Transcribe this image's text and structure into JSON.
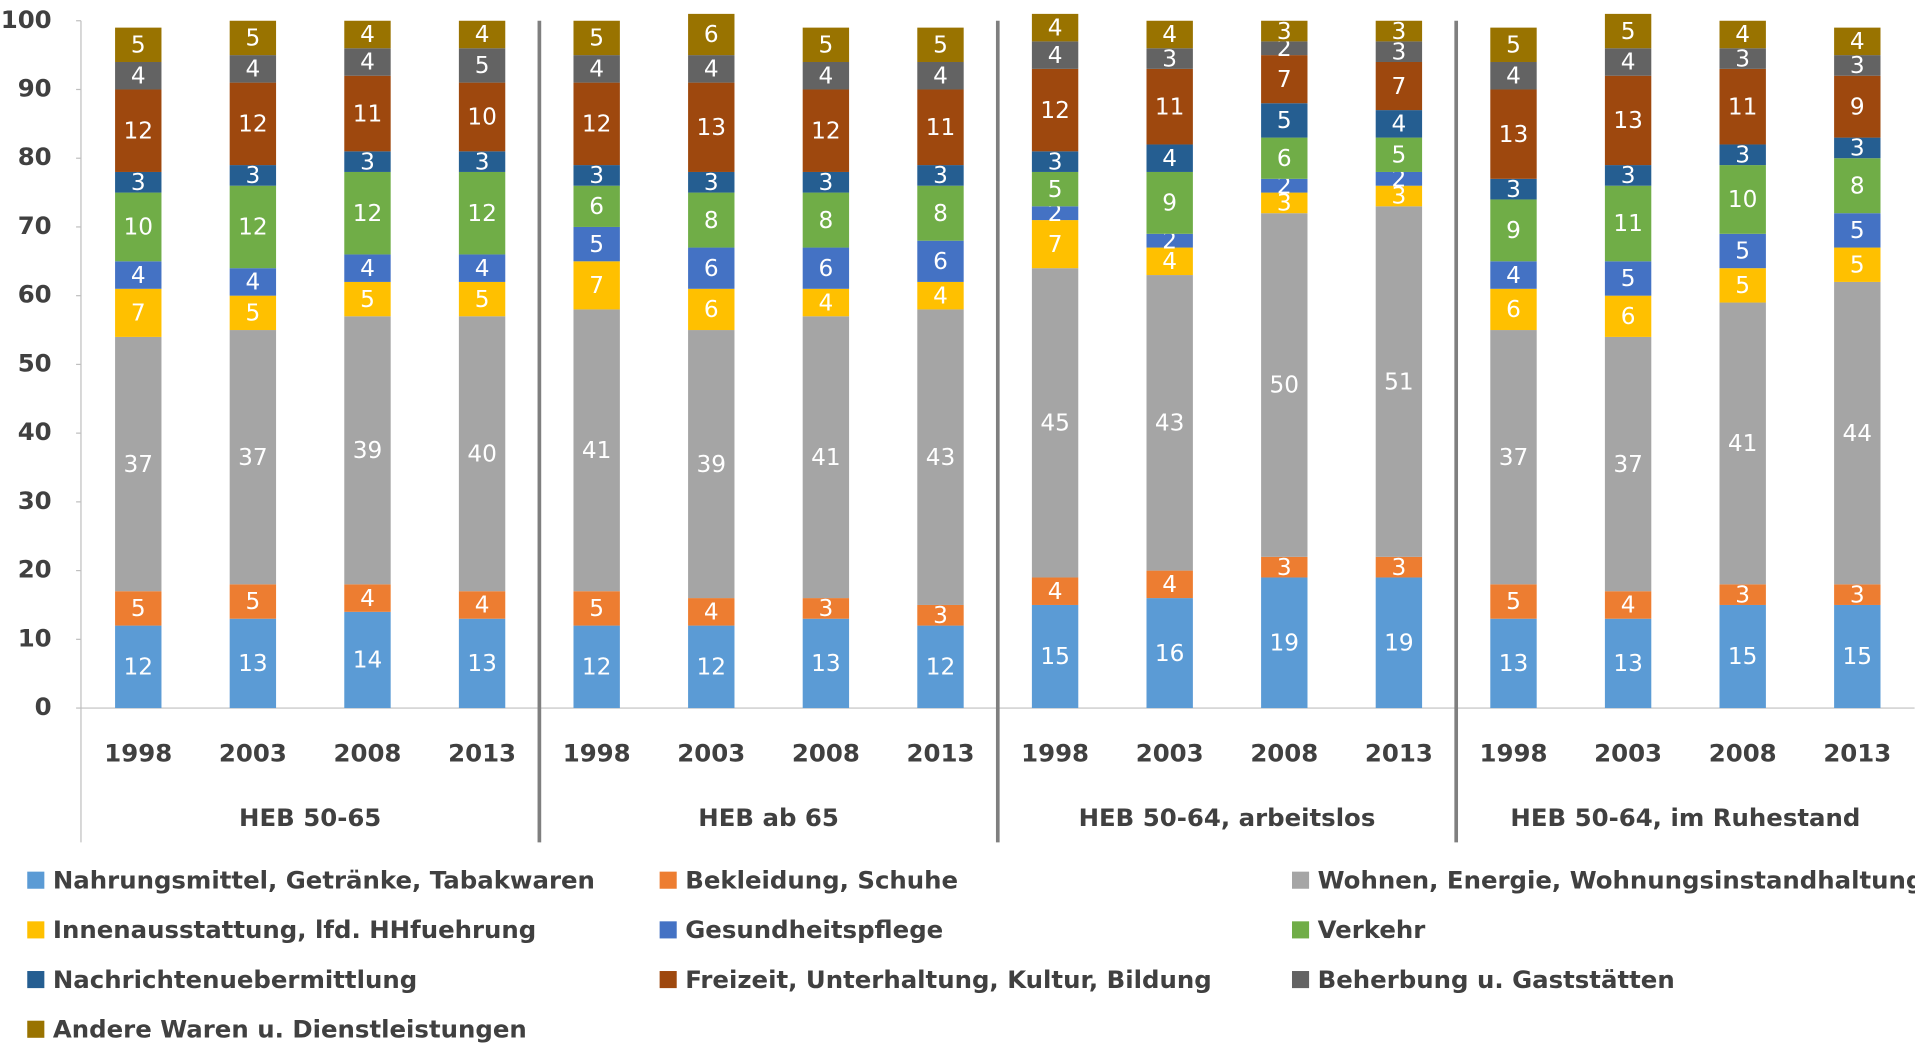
{
  "chart_data": {
    "type": "stacked-bar",
    "categories": [
      "1998",
      "2003",
      "2008",
      "2013",
      "1998",
      "2003",
      "2008",
      "2013",
      "1998",
      "2003",
      "2008",
      "2013",
      "1998",
      "2003",
      "2008",
      "2013"
    ],
    "groups": [
      "HEB 50-65",
      "HEB ab 65",
      "HEB 50-64, arbeitslos",
      "HEB 50-64, im Ruhestand"
    ],
    "ylim": [
      0,
      100
    ],
    "yticks": [
      0,
      10,
      20,
      30,
      40,
      50,
      60,
      70,
      80,
      90,
      100
    ],
    "grid": false,
    "series": [
      {
        "name": "Nahrungsmittel, Getränke, Tabakwaren",
        "color": "#5b9bd5",
        "values": [
          12,
          13,
          14,
          13,
          12,
          12,
          13,
          12,
          15,
          16,
          19,
          19,
          13,
          13,
          15,
          15
        ]
      },
      {
        "name": "Bekleidung, Schuhe",
        "color": "#ed7d31",
        "values": [
          5,
          5,
          4,
          4,
          5,
          4,
          3,
          3,
          4,
          4,
          3,
          3,
          5,
          4,
          3,
          3
        ]
      },
      {
        "name": "Wohnen, Energie, Wohnungsinstandhaltung",
        "color": "#a5a5a5",
        "values": [
          37,
          37,
          39,
          40,
          41,
          39,
          41,
          43,
          45,
          43,
          50,
          51,
          37,
          37,
          41,
          44
        ]
      },
      {
        "name": "Innenausstattung, lfd. HHfuehrung",
        "color": "#ffc000",
        "values": [
          7,
          5,
          5,
          5,
          7,
          6,
          4,
          4,
          7,
          4,
          3,
          3,
          6,
          6,
          5,
          5
        ]
      },
      {
        "name": "Gesundheitspflege",
        "color": "#4472c4",
        "values": [
          4,
          4,
          4,
          4,
          5,
          6,
          6,
          6,
          2,
          2,
          2,
          2,
          4,
          5,
          5,
          5
        ]
      },
      {
        "name": "Verkehr",
        "color": "#70ad47",
        "values": [
          10,
          12,
          12,
          12,
          6,
          8,
          8,
          8,
          5,
          9,
          6,
          5,
          9,
          11,
          10,
          8
        ]
      },
      {
        "name": "Nachrichtenuebermittlung",
        "color": "#255e91",
        "values": [
          3,
          3,
          3,
          3,
          3,
          3,
          3,
          3,
          3,
          4,
          5,
          4,
          3,
          3,
          3,
          3
        ]
      },
      {
        "name": "Freizeit, Unterhaltung, Kultur, Bildung",
        "color": "#9e480e",
        "values": [
          12,
          12,
          11,
          10,
          12,
          13,
          12,
          11,
          12,
          11,
          7,
          7,
          13,
          13,
          11,
          9
        ]
      },
      {
        "name": "Beherbung u. Gaststätten",
        "color": "#636363",
        "values": [
          4,
          4,
          4,
          5,
          4,
          4,
          4,
          4,
          4,
          3,
          2,
          3,
          4,
          4,
          3,
          3
        ]
      },
      {
        "name": "Andere Waren u. Dienstleistungen",
        "color": "#997300",
        "values": [
          5,
          5,
          4,
          4,
          5,
          6,
          5,
          5,
          4,
          4,
          3,
          3,
          5,
          5,
          4,
          4
        ]
      }
    ]
  }
}
